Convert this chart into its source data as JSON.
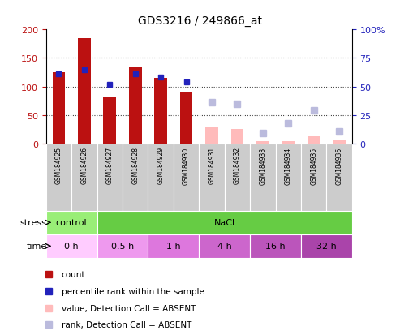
{
  "title": "GDS3216 / 249866_at",
  "samples": [
    "GSM184925",
    "GSM184926",
    "GSM184927",
    "GSM184928",
    "GSM184929",
    "GSM184930",
    "GSM184931",
    "GSM184932",
    "GSM184933",
    "GSM184934",
    "GSM184935",
    "GSM184936"
  ],
  "count_present": [
    125,
    185,
    82,
    135,
    115,
    90,
    null,
    null,
    null,
    null,
    null,
    null
  ],
  "count_absent": [
    null,
    null,
    null,
    null,
    null,
    null,
    28,
    26,
    5,
    5,
    13,
    6
  ],
  "rank_present": [
    61,
    65,
    52,
    61,
    58,
    54,
    null,
    null,
    null,
    null,
    null,
    null
  ],
  "rank_absent": [
    null,
    null,
    null,
    null,
    null,
    null,
    36,
    35,
    9,
    18,
    29,
    11
  ],
  "ylim_left": [
    0,
    200
  ],
  "ylim_right": [
    0,
    100
  ],
  "yticks_left": [
    0,
    50,
    100,
    150,
    200
  ],
  "yticks_right": [
    0,
    25,
    50,
    75,
    100
  ],
  "ytick_labels_right": [
    "0",
    "25",
    "50",
    "75",
    "100%"
  ],
  "stress_groups": [
    {
      "label": "control",
      "start": 0,
      "end": 2,
      "color": "#99ee77"
    },
    {
      "label": "NaCl",
      "start": 2,
      "end": 12,
      "color": "#66cc44"
    }
  ],
  "time_groups": [
    {
      "label": "0 h",
      "start": 0,
      "end": 2,
      "color": "#ffccff"
    },
    {
      "label": "0.5 h",
      "start": 2,
      "end": 4,
      "color": "#ee99ee"
    },
    {
      "label": "1 h",
      "start": 4,
      "end": 6,
      "color": "#dd77dd"
    },
    {
      "label": "4 h",
      "start": 6,
      "end": 8,
      "color": "#cc66cc"
    },
    {
      "label": "16 h",
      "start": 8,
      "end": 10,
      "color": "#bb55bb"
    },
    {
      "label": "32 h",
      "start": 10,
      "end": 12,
      "color": "#aa44aa"
    }
  ],
  "count_color": "#bb1111",
  "rank_color": "#2222bb",
  "count_absent_color": "#ffbbbb",
  "rank_absent_color": "#bbbbdd",
  "bg_color": "#ffffff",
  "grid_color": "#444444",
  "sample_box_color": "#cccccc",
  "sample_box_color2": "#bbbbbb"
}
